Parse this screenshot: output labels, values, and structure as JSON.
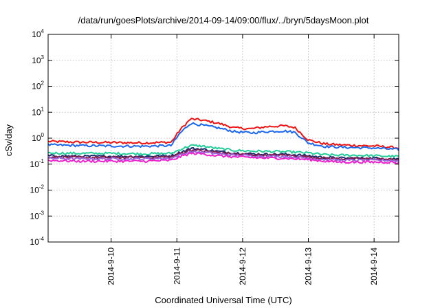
{
  "chart_data": {
    "type": "line",
    "title": "/data/run/goesPlots/archive/2014-09-14/09:00/flux/../bryn/5daysMoon.plot",
    "xlabel": "Coordinated Universal Time (UTC)",
    "ylabel": "cSv/day",
    "y_scale": "log",
    "ylim": [
      0.0001,
      10000
    ],
    "xlim": [
      "2014-09-09T01:00",
      "2014-09-14T09:00"
    ],
    "grid": true,
    "legend": "none",
    "y_ticks": [
      {
        "base": "10",
        "exp": "-4",
        "value": 0.0001
      },
      {
        "base": "10",
        "exp": "-3",
        "value": 0.001
      },
      {
        "base": "10",
        "exp": "-2",
        "value": 0.01
      },
      {
        "base": "10",
        "exp": "-1",
        "value": 0.1
      },
      {
        "base": "10",
        "exp": "0",
        "value": 1
      },
      {
        "base": "10",
        "exp": "1",
        "value": 10
      },
      {
        "base": "10",
        "exp": "2",
        "value": 100
      },
      {
        "base": "10",
        "exp": "3",
        "value": 1000
      },
      {
        "base": "10",
        "exp": "4",
        "value": 10000
      }
    ],
    "x_ticks": [
      {
        "label": "2014-9-10",
        "value": "2014-09-10T00:00"
      },
      {
        "label": "2014-9-11",
        "value": "2014-09-11T00:00"
      },
      {
        "label": "2014-9-12",
        "value": "2014-09-12T00:00"
      },
      {
        "label": "2014-9-13",
        "value": "2014-09-13T00:00"
      },
      {
        "label": "2014-9-14",
        "value": "2014-09-14T00:00"
      }
    ],
    "x": [
      "2014-09-09T01:00",
      "2014-09-09T12:00",
      "2014-09-10T00:00",
      "2014-09-10T12:00",
      "2014-09-10T22:00",
      "2014-09-11T01:00",
      "2014-09-11T05:00",
      "2014-09-11T09:00",
      "2014-09-11T15:00",
      "2014-09-11T21:00",
      "2014-09-12T03:00",
      "2014-09-12T09:00",
      "2014-09-12T15:00",
      "2014-09-12T19:00",
      "2014-09-13T00:00",
      "2014-09-13T06:00",
      "2014-09-13T12:00",
      "2014-09-13T18:00",
      "2014-09-14T00:00",
      "2014-09-14T06:00",
      "2014-09-14T09:00"
    ],
    "series": [
      {
        "color": "#ee1111",
        "values": [
          0.75,
          0.7,
          0.68,
          0.66,
          0.7,
          2.0,
          5.5,
          5.0,
          3.8,
          2.5,
          2.3,
          2.8,
          3.0,
          2.6,
          0.85,
          0.6,
          0.55,
          0.52,
          0.5,
          0.45,
          0.42
        ]
      },
      {
        "color": "#1a66ee",
        "values": [
          0.55,
          0.52,
          0.5,
          0.49,
          0.52,
          1.5,
          3.8,
          3.2,
          2.5,
          1.8,
          1.6,
          1.8,
          1.9,
          1.7,
          0.65,
          0.48,
          0.45,
          0.43,
          0.42,
          0.38,
          0.36
        ]
      },
      {
        "color": "#22cc99",
        "values": [
          0.27,
          0.26,
          0.26,
          0.25,
          0.26,
          0.36,
          0.52,
          0.5,
          0.4,
          0.34,
          0.32,
          0.31,
          0.3,
          0.29,
          0.27,
          0.23,
          0.22,
          0.22,
          0.21,
          0.2,
          0.2
        ]
      },
      {
        "color": "#1a2a6e",
        "values": [
          0.21,
          0.2,
          0.2,
          0.2,
          0.21,
          0.28,
          0.4,
          0.38,
          0.31,
          0.27,
          0.25,
          0.24,
          0.24,
          0.23,
          0.21,
          0.18,
          0.17,
          0.17,
          0.17,
          0.16,
          0.16
        ]
      },
      {
        "color": "#8a1a4a",
        "values": [
          0.19,
          0.18,
          0.18,
          0.18,
          0.19,
          0.25,
          0.35,
          0.33,
          0.28,
          0.24,
          0.23,
          0.22,
          0.22,
          0.21,
          0.19,
          0.17,
          0.16,
          0.16,
          0.16,
          0.15,
          0.15
        ]
      },
      {
        "color": "#9966dd",
        "values": [
          0.17,
          0.16,
          0.16,
          0.16,
          0.17,
          0.22,
          0.3,
          0.29,
          0.25,
          0.22,
          0.21,
          0.2,
          0.2,
          0.19,
          0.17,
          0.15,
          0.14,
          0.14,
          0.14,
          0.14,
          0.13
        ]
      },
      {
        "color": "#ee22cc",
        "values": [
          0.14,
          0.13,
          0.13,
          0.13,
          0.14,
          0.19,
          0.26,
          0.25,
          0.21,
          0.19,
          0.18,
          0.17,
          0.17,
          0.16,
          0.15,
          0.13,
          0.12,
          0.12,
          0.12,
          0.12,
          0.11
        ]
      }
    ]
  }
}
